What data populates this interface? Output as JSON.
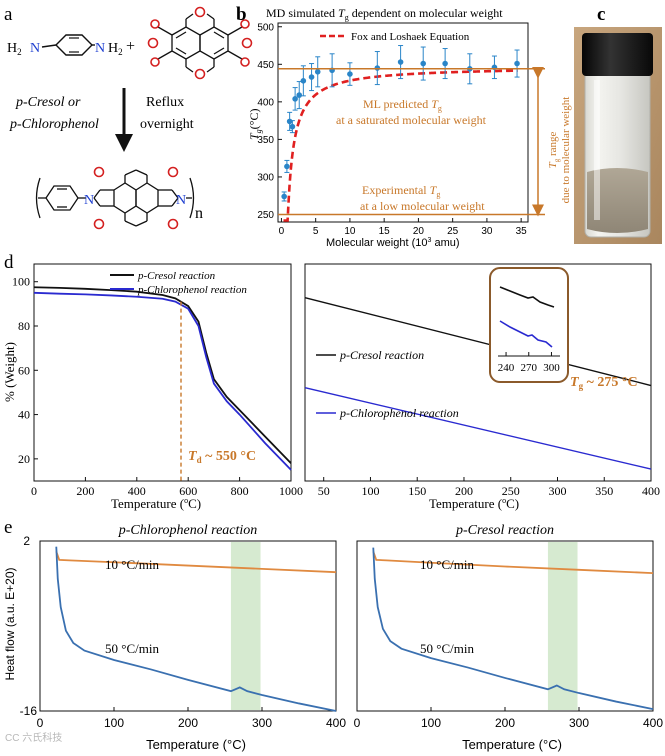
{
  "panels": {
    "a": {
      "letter": "a",
      "reactant": "H",
      "reactant_sub": "2",
      "n_label": "N",
      "plus": "+",
      "solvent_line1": "p-Cresol or",
      "solvent_line2": "p-Chlorophenol",
      "condition_line1": "Reflux",
      "condition_line2": "overnight",
      "repeat_n": "n",
      "colors": {
        "oxygen": "#d42020",
        "nitrogen": "#1e3fd0",
        "bond": "#111111"
      }
    },
    "b": {
      "letter": "b",
      "title_prefix": "MD simulated ",
      "title_sym": "T",
      "title_sub": "g",
      "title_suffix": " dependent on molecular weight",
      "legend": "Fox and Loshaek Equation",
      "ylabel_sym": "T",
      "ylabel_sub": "g",
      "ylabel_unit": "(°C)",
      "xlabel": "Molecular weight (10",
      "xlabel_sup": "3",
      "xlabel_end": " amu)",
      "ml_line1_pre": "ML predicted ",
      "ml_sym": "T",
      "ml_sub": "g",
      "ml_line2": "at a saturated molecular weight",
      "exp_line1_pre": "Experimental ",
      "exp_sym": "T",
      "exp_sub": "g",
      "exp_line2": "at a low molecular weight",
      "range_sym": "T",
      "range_sub": "g",
      "range_line1": " range",
      "range_line2": "due to molecular weight",
      "colors": {
        "points": "#2a85c8",
        "fit": "#e02020",
        "annot": "#c8782a"
      }
    },
    "c": {
      "letter": "c"
    },
    "d": {
      "letter": "d",
      "ylabel": "% (Weight)",
      "xlabel": "Temperature (",
      "xlabel_sup": "o",
      "xlabel_end": "C)",
      "legend1": "p-Cresol reaction",
      "legend2": "p-Chlorophenol reaction",
      "td_sym": "T",
      "td_sub": "d",
      "td_value": " ~ 550 °C",
      "zoom_label1": "p-Cresol reaction",
      "zoom_label2": "p-Chlorophenol reaction",
      "tg_sym": "T",
      "tg_sub": "g",
      "tg_value": " ~ 275 °C",
      "colors": {
        "cresol": "#111111",
        "chloro": "#2a2ad0",
        "annot": "#c8782a"
      }
    },
    "e": {
      "letter": "e",
      "ylabel": "Heat flow (a.u. E+20)",
      "xlabel": "Temperature (°C)",
      "left_title": "p-Chlorophenol reaction",
      "right_title": "p-Cresol reaction",
      "rate10": "10 °C/min",
      "rate50": "50 °C/min",
      "ytop": "2",
      "ybottom": "-16",
      "colors": {
        "rate10": "#e08a40",
        "rate50": "#3a70b0",
        "band": "#d6ead0"
      }
    }
  },
  "watermark": "CC 六氏科技",
  "chart_data": [
    {
      "type": "scatter",
      "title": "MD simulated Tg dependent on molecular weight",
      "xlabel": "Molecular weight (10^3 amu)",
      "ylabel": "Tg (°C)",
      "xlim": [
        -0.5,
        36
      ],
      "ylim": [
        240,
        505
      ],
      "xticks": [
        0,
        5,
        10,
        15,
        20,
        25,
        30,
        35
      ],
      "yticks": [
        250,
        300,
        350,
        400,
        450,
        500
      ],
      "x": [
        0.4,
        0.8,
        1.2,
        1.6,
        2.0,
        2.6,
        3.2,
        4.4,
        5.3,
        7.4,
        10.0,
        14.0,
        17.4,
        20.7,
        23.9,
        27.5,
        31.1,
        34.4
      ],
      "y": [
        274,
        314,
        374,
        367,
        404,
        409,
        428,
        433,
        440,
        442,
        437,
        445,
        453,
        451,
        451,
        444,
        446,
        451
      ],
      "err": [
        6,
        8,
        12,
        8,
        15,
        18,
        20,
        18,
        20,
        22,
        15,
        22,
        22,
        22,
        20,
        20,
        15,
        18
      ],
      "fit_name": "Fox and Loshaek Equation",
      "fit_tinf": 447,
      "fit_k": 7.5,
      "experimental_tg": 250,
      "ml_tg": 444
    },
    {
      "type": "line",
      "xlabel": "Temperature (oC)",
      "ylabel": "% (Weight)",
      "xlim": [
        0,
        1000
      ],
      "ylim": [
        10,
        108
      ],
      "xticks": [
        0,
        200,
        400,
        600,
        800,
        1000
      ],
      "yticks": [
        20,
        40,
        60,
        80,
        100
      ],
      "series": [
        {
          "name": "p-Cresol reaction",
          "x": [
            0,
            100,
            200,
            300,
            400,
            500,
            550,
            600,
            640,
            670,
            700,
            750,
            800,
            850,
            900,
            950,
            1000
          ],
          "y": [
            97.5,
            97.2,
            96.8,
            96.2,
            95.5,
            94,
            92.5,
            89,
            82,
            68,
            56,
            48,
            42,
            36,
            30,
            24,
            18
          ]
        },
        {
          "name": "p-Chlorophenol reaction",
          "x": [
            0,
            100,
            200,
            300,
            400,
            500,
            550,
            600,
            640,
            670,
            700,
            750,
            800,
            850,
            900,
            950,
            1000
          ],
          "y": [
            95,
            94.6,
            94.3,
            93.8,
            93.2,
            92.3,
            91,
            87.8,
            80,
            66,
            54,
            46,
            40,
            33.5,
            27,
            21,
            15
          ]
        }
      ],
      "annotation": "Td ~ 550 °C"
    },
    {
      "type": "line",
      "xlabel": "Temperature (oC)",
      "xlim": [
        30,
        400
      ],
      "xticks": [
        50,
        100,
        150,
        200,
        250,
        300,
        350,
        400
      ],
      "series": [
        {
          "name": "p-Cresol reaction",
          "x": [
            30,
            400
          ],
          "y": [
            0.845,
            0.44
          ]
        },
        {
          "name": "p-Chlorophenol reaction",
          "x": [
            30,
            400
          ],
          "y": [
            0.43,
            0.055
          ]
        }
      ],
      "inset_xticks": [
        240,
        270,
        300
      ],
      "annotation": "Tg ~ 275 °C"
    },
    {
      "type": "line",
      "title": "p-Chlorophenol reaction",
      "xlabel": "Temperature (°C)",
      "ylabel": "Heat flow (a.u. E+20)",
      "xlim": [
        0,
        400
      ],
      "xticks": [
        0,
        100,
        200,
        300,
        400
      ],
      "highlight_range": [
        258,
        298
      ],
      "series": [
        {
          "name": "10 °C/min",
          "x": [
            22,
            26,
            40,
            100,
            200,
            300,
            400
          ],
          "y": [
            0.9,
            0,
            -0.05,
            -0.25,
            -0.6,
            -0.95,
            -1.3
          ]
        },
        {
          "name": "50 °C/min",
          "x": [
            22,
            24,
            28,
            35,
            45,
            60,
            100,
            150,
            200,
            258,
            270,
            280,
            300,
            350,
            400
          ],
          "y": [
            1.4,
            -2,
            -5,
            -7.5,
            -8.8,
            -9.6,
            -10.6,
            -11.6,
            -12.7,
            -13.9,
            -13.5,
            -13.9,
            -14.3,
            -15.2,
            -16.0
          ]
        }
      ]
    },
    {
      "type": "line",
      "title": "p-Cresol reaction",
      "xlabel": "Temperature (°C)",
      "xlim": [
        0,
        400
      ],
      "xticks": [
        0,
        100,
        200,
        300,
        400
      ],
      "highlight_range": [
        258,
        298
      ],
      "series": [
        {
          "name": "10 °C/min",
          "x": [
            22,
            26,
            40,
            100,
            200,
            300,
            400
          ],
          "y": [
            0.9,
            0,
            -0.05,
            -0.3,
            -0.7,
            -1.05,
            -1.4
          ]
        },
        {
          "name": "50 °C/min",
          "x": [
            22,
            24,
            28,
            35,
            45,
            60,
            100,
            150,
            200,
            258,
            270,
            280,
            300,
            350,
            400
          ],
          "y": [
            1.3,
            -2,
            -5,
            -7.3,
            -8.6,
            -9.4,
            -10.4,
            -11.4,
            -12.5,
            -13.7,
            -13.3,
            -13.7,
            -14.1,
            -15.0,
            -15.8
          ]
        }
      ]
    }
  ]
}
